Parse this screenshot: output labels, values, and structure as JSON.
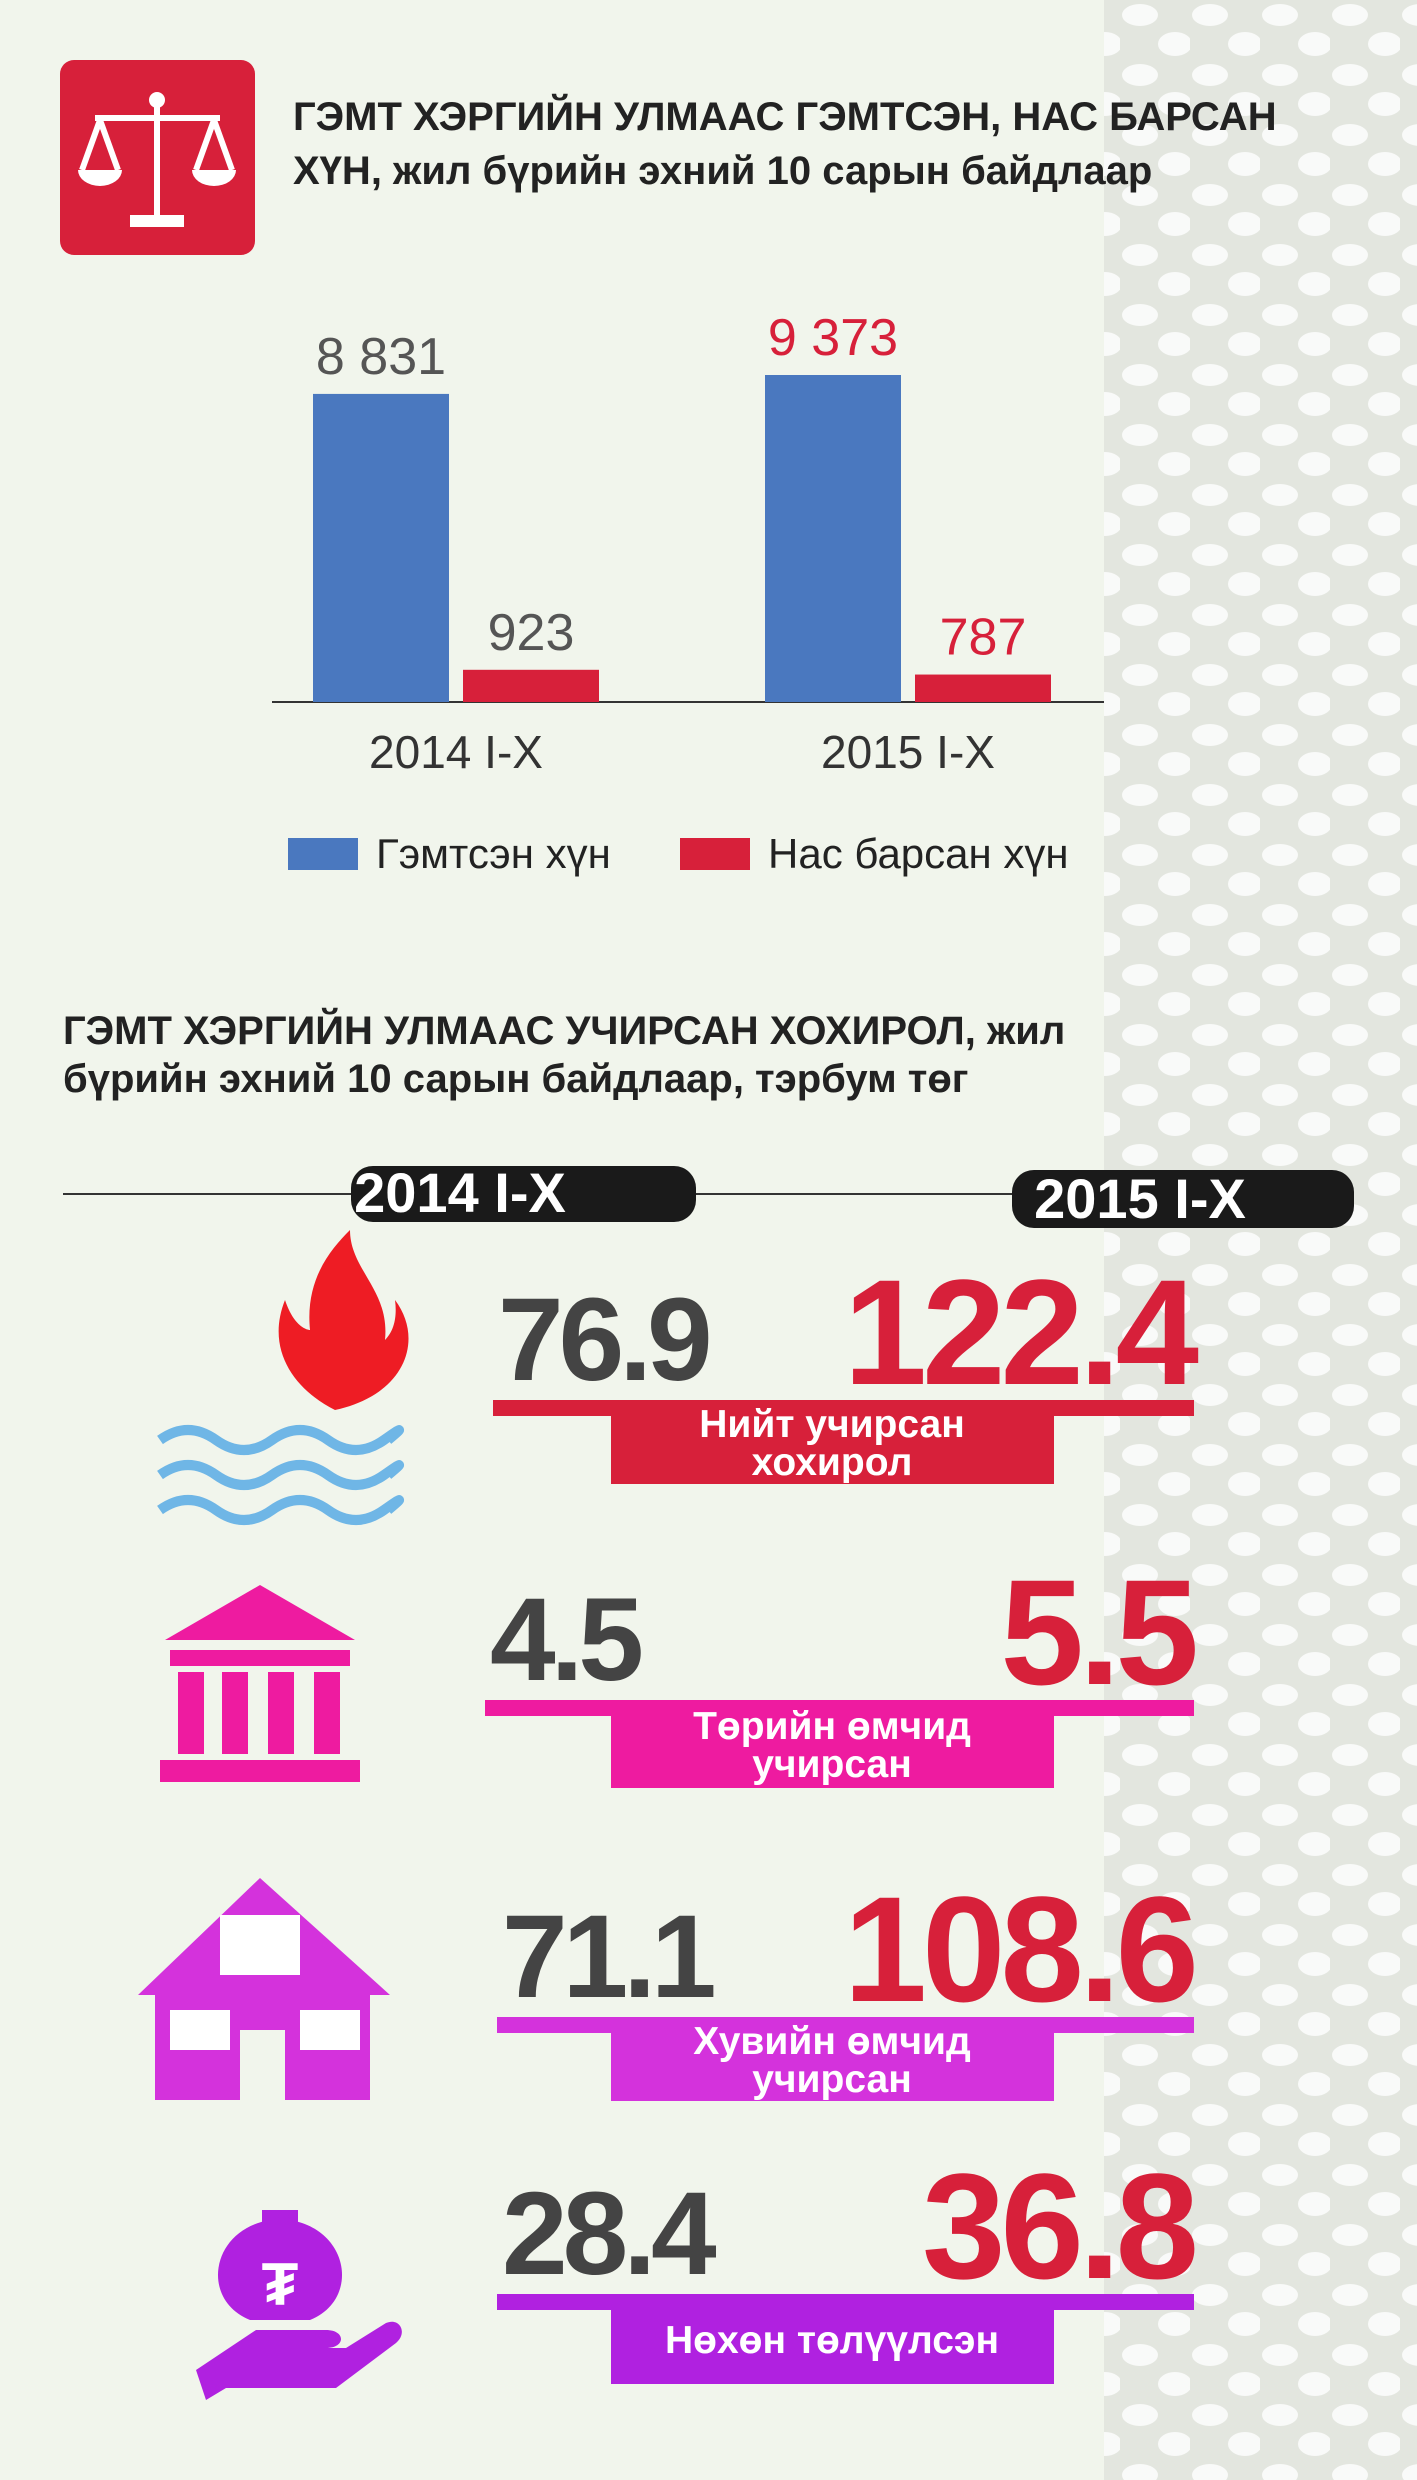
{
  "header": {
    "title": [
      "ГЭМТ ХЭРГИЙН УЛМААС ГЭМТСЭН, НАС БАРСАН",
      "ХҮН, жил бүрийн эхний 10 сарын байдлаар"
    ]
  },
  "chart_data": {
    "type": "bar",
    "categories": [
      "2014 I-X",
      "2015 I-X"
    ],
    "series": [
      {
        "name": "Гэмтсэн хүн",
        "color": "#4a78bf",
        "values": [
          8831,
          9373
        ],
        "value_labels": [
          "8 831",
          "9 373"
        ]
      },
      {
        "name": "Нас барсан хүн",
        "color": "#d7203a",
        "values": [
          923,
          787
        ]
      }
    ],
    "legend": "bottom"
  },
  "damage": {
    "title": [
      "ГЭМТ ХЭРГИЙН УЛМААС УЧИРСАН ХОХИРОЛ, жил",
      "бүрийн эхний 10 сарын байдлаар, тэрбум төг"
    ],
    "years": [
      "2014 I-X",
      "2015 I-X"
    ],
    "rows": [
      {
        "label": [
          "Нийт учирсан",
          "хохирол"
        ],
        "values": [
          76.9,
          122.4
        ],
        "color": "#d7203a"
      },
      {
        "label": [
          "Төрийн өмчид",
          "учирсан"
        ],
        "values": [
          4.5,
          5.5
        ],
        "color": "#ee1ba0"
      },
      {
        "label": [
          "Хувийн өмчид",
          "учирсан"
        ],
        "values": [
          71.1,
          108.6
        ],
        "color": "#d432dc"
      },
      {
        "label": [
          "Нөхөн төлүүлсэн"
        ],
        "values": [
          28.4,
          36.8
        ],
        "color": "#b021e0"
      }
    ]
  }
}
